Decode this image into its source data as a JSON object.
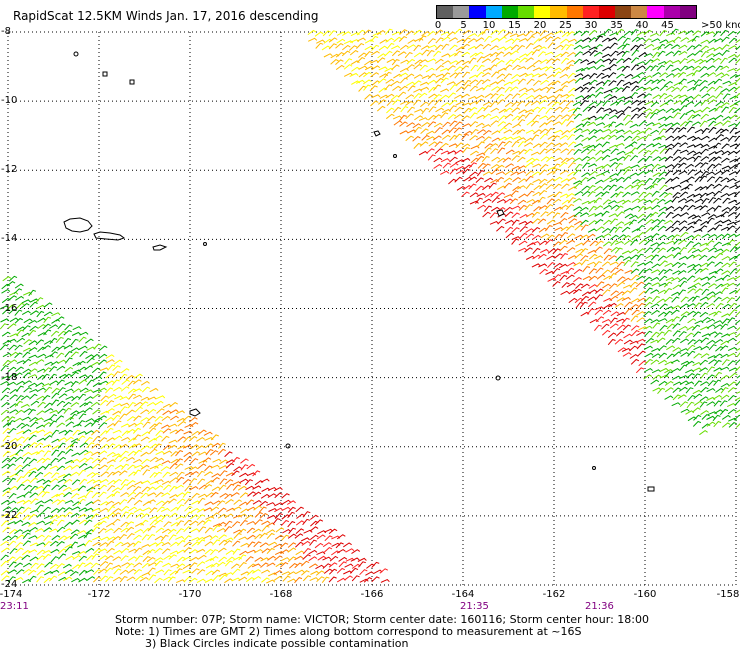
{
  "title": "RapidScat 12.5KM Winds Jan. 17, 2016 descending",
  "legend": {
    "colors": [
      "#606060",
      "#9a9a9a",
      "#0000ff",
      "#00aaff",
      "#00aa00",
      "#66dd00",
      "#ffff00",
      "#ffbb00",
      "#ff7700",
      "#ff2222",
      "#dd0000",
      "#8b4513",
      "#cc8844",
      "#ff00ff",
      "#aa00aa",
      "#800080"
    ],
    "labels": [
      "0",
      "5",
      "10",
      "15",
      "20",
      "25",
      "30",
      "35",
      "40",
      "45",
      ">50 knots"
    ]
  },
  "map": {
    "lon_range": [
      -174,
      -158
    ],
    "lat_range": [
      -24,
      -8
    ],
    "lat_labels": [
      "-8",
      "-10",
      "-12",
      "-14",
      "-16",
      "-18",
      "-20",
      "-22",
      "-24"
    ],
    "lon_labels": [
      "-174",
      "-172",
      "-170",
      "-168",
      "-166",
      "-164",
      "-162",
      "-160",
      "-158"
    ],
    "grid": "dotted"
  },
  "times": [
    "23:11",
    "21:35",
    "21:36"
  ],
  "footer": {
    "line1": "Storm number: 07P;  Storm name: VICTOR;  Storm center date: 160116;  Storm center hour: 18:00",
    "line2": "Note: 1) Times are GMT  2) Times along bottom correspond to measurement at ~16S",
    "line3": "3) Black Circles indicate possible contamination"
  }
}
